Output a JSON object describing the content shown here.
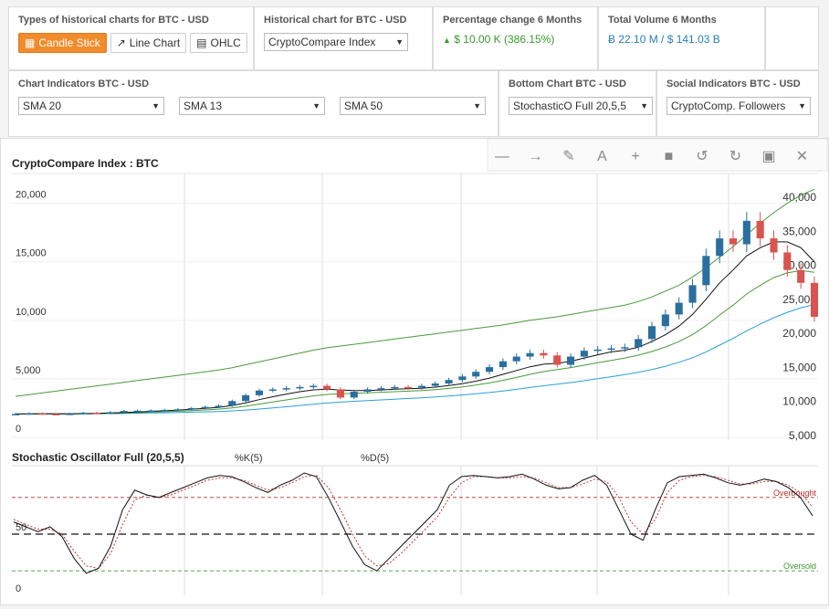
{
  "controls": {
    "chart_types": {
      "title": "Types of historical charts for BTC - USD",
      "buttons": [
        {
          "label": "Candle Stick",
          "icon": "bar-chart-icon",
          "active": true
        },
        {
          "label": "Line Chart",
          "icon": "line-chart-icon",
          "active": false
        },
        {
          "label": "OHLC",
          "icon": "ohlc-icon",
          "active": false
        }
      ]
    },
    "historical": {
      "title": "Historical chart for BTC - USD",
      "value": "CryptoCompare Index"
    },
    "pct_change": {
      "title": "Percentage change 6 Months",
      "value": "$ 10.00 K (386.15%)"
    },
    "volume": {
      "title": "Total Volume 6 Months",
      "value": "Ƀ 22.10 M / $ 141.03 B"
    },
    "indicators": {
      "title": "Chart Indicators BTC - USD",
      "selects": [
        "SMA 20",
        "SMA 13",
        "SMA 50"
      ]
    },
    "bottom_chart": {
      "title": "Bottom Chart BTC - USD",
      "value": "StochasticO Full 20,5,5"
    },
    "social": {
      "title": "Social Indicators BTC - USD",
      "value": "CryptoComp. Followers"
    }
  },
  "toolbar": [
    "minus-icon",
    "arrow-right-icon",
    "pencil-icon",
    "text-icon",
    "plus-icon",
    "square-icon",
    "undo-icon",
    "redo-icon",
    "save-icon",
    "trash-icon"
  ],
  "colors": {
    "up": "#2a6f9e",
    "down": "#d9534f",
    "accent": "#f08c2c",
    "sma_black": "#111111",
    "sma_green": "#4a9a3a",
    "sma_blue": "#2a9fd6"
  },
  "chart_data": [
    {
      "type": "candlestick",
      "title": "CryptoCompare Index : BTC",
      "left_axis": {
        "ticks": [
          0,
          5000,
          10000,
          15000,
          20000
        ],
        "labels": [
          "0",
          "5,000",
          "10,000",
          "15,000",
          "20,000"
        ]
      },
      "right_axis": {
        "ticks": [
          5000,
          10000,
          15000,
          20000,
          25000,
          30000,
          35000,
          40000
        ],
        "labels": [
          "5,000",
          "10,000",
          "15,000",
          "20,000",
          "25,000",
          "30,000",
          "35,000",
          "40,000"
        ]
      },
      "close": [
        2000,
        2050,
        2000,
        1980,
        2020,
        2100,
        2050,
        2150,
        2250,
        2280,
        2300,
        2350,
        2400,
        2500,
        2600,
        2700,
        3100,
        3600,
        4000,
        4100,
        4200,
        4300,
        4400,
        4100,
        3400,
        3900,
        4100,
        4200,
        4300,
        4250,
        4400,
        4600,
        4900,
        5200,
        5600,
        6000,
        6500,
        6900,
        7200,
        7000,
        6200,
        6900,
        7400,
        7500,
        7600,
        7700,
        8400,
        9500,
        10500,
        11500,
        13000,
        15500,
        17000,
        16500,
        18500,
        17000,
        15800,
        14300,
        13200,
        10300
      ],
      "sma_black": [
        2000,
        2010,
        2020,
        2010,
        2010,
        2030,
        2050,
        2080,
        2120,
        2170,
        2220,
        2270,
        2330,
        2400,
        2480,
        2570,
        2720,
        2950,
        3220,
        3470,
        3700,
        3900,
        4060,
        4120,
        4050,
        4000,
        4000,
        4050,
        4110,
        4150,
        4200,
        4290,
        4420,
        4590,
        4800,
        5060,
        5380,
        5710,
        6030,
        6250,
        6330,
        6500,
        6780,
        7050,
        7300,
        7440,
        7700,
        8180,
        8770,
        9500,
        10500,
        11800,
        13200,
        14300,
        15500,
        16200,
        16700,
        16700,
        16200,
        15000
      ],
      "sma_green": [
        2000,
        2000,
        2010,
        2010,
        2010,
        2020,
        2030,
        2050,
        2080,
        2110,
        2150,
        2190,
        2230,
        2280,
        2340,
        2410,
        2510,
        2660,
        2840,
        3020,
        3200,
        3380,
        3540,
        3670,
        3720,
        3760,
        3800,
        3850,
        3900,
        3950,
        4000,
        4080,
        4180,
        4310,
        4460,
        4650,
        4870,
        5120,
        5380,
        5620,
        5790,
        5960,
        6160,
        6370,
        6580,
        6780,
        7020,
        7330,
        7720,
        8180,
        8770,
        9550,
        10450,
        11300,
        12250,
        13000,
        13650,
        14050,
        14250,
        14100
      ],
      "sma_blue": [
        2000,
        2000,
        2000,
        2000,
        2010,
        2010,
        2020,
        2030,
        2040,
        2060,
        2080,
        2100,
        2120,
        2150,
        2180,
        2210,
        2260,
        2330,
        2420,
        2510,
        2610,
        2720,
        2830,
        2930,
        3010,
        3080,
        3140,
        3200,
        3260,
        3320,
        3380,
        3450,
        3530,
        3620,
        3720,
        3830,
        3960,
        4100,
        4260,
        4410,
        4540,
        4680,
        4840,
        5010,
        5180,
        5360,
        5560,
        5800,
        6080,
        6410,
        6800,
        7300,
        7880,
        8460,
        9100,
        9680,
        10220,
        10680,
        11070,
        11350
      ],
      "bollinger_upper": [
        3500,
        3650,
        3800,
        3950,
        4100,
        4250,
        4400,
        4550,
        4700,
        4850,
        5000,
        5150,
        5300,
        5450,
        5600,
        5750,
        5950,
        6200,
        6450,
        6700,
        6950,
        7200,
        7450,
        7650,
        7800,
        7950,
        8100,
        8250,
        8400,
        8550,
        8700,
        8850,
        9000,
        9150,
        9300,
        9450,
        9600,
        9800,
        10000,
        10150,
        10300,
        10500,
        10700,
        10900,
        11100,
        11300,
        11600,
        12000,
        12500,
        13000,
        13700,
        14500,
        15400,
        16300,
        17300,
        18300,
        19200,
        20000,
        20700,
        21200
      ]
    },
    {
      "type": "line",
      "title": "Stochastic Oscillator Full (20,5,5)",
      "series": [
        {
          "name": "%K(5)",
          "values": [
            60,
            56,
            52,
            56,
            48,
            30,
            18,
            22,
            40,
            70,
            86,
            82,
            80,
            84,
            88,
            92,
            96,
            98,
            97,
            93,
            88,
            84,
            90,
            94,
            100,
            97,
            80,
            60,
            40,
            25,
            20,
            30,
            40,
            50,
            60,
            70,
            90,
            97,
            98,
            97,
            96,
            97,
            99,
            95,
            90,
            87,
            88,
            94,
            98,
            90,
            70,
            50,
            45,
            70,
            92,
            97,
            98,
            99,
            96,
            92,
            90,
            92,
            95,
            93,
            88,
            80,
            65
          ]
        },
        {
          "name": "%D(5)",
          "values": [
            62,
            58,
            54,
            54,
            50,
            36,
            24,
            22,
            34,
            58,
            78,
            82,
            80,
            82,
            86,
            90,
            94,
            96,
            96,
            94,
            90,
            86,
            88,
            92,
            97,
            98,
            88,
            70,
            50,
            32,
            24,
            26,
            34,
            44,
            54,
            64,
            80,
            92,
            97,
            97,
            96,
            96,
            97,
            96,
            92,
            88,
            88,
            91,
            95,
            93,
            80,
            60,
            50,
            62,
            84,
            94,
            97,
            98,
            97,
            94,
            91,
            91,
            93,
            93,
            90,
            84,
            72
          ]
        }
      ],
      "levels": [
        {
          "label": "Overbought",
          "value": 80
        },
        {
          "label": "Oversold",
          "value": 20
        },
        {
          "label": "",
          "value": 50
        }
      ],
      "left_axis_labels": [
        "0",
        "50"
      ]
    }
  ]
}
